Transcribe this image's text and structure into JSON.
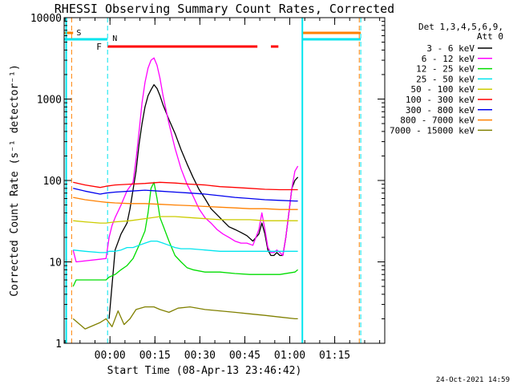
{
  "chart_data": {
    "type": "line",
    "title": "RHESSI Observing Summary Count Rates, Corrected",
    "xlabel": "Start Time (08-Apr-13 23:46:42)",
    "ylabel": "Corrected Count Rate (s⁻¹ detector⁻¹)",
    "yscale": "log",
    "ylim": [
      1,
      10000
    ],
    "xlim_minutes_from_start": [
      -2,
      105
    ],
    "x_ticks": [
      {
        "label": "00:00",
        "t": 13.3
      },
      {
        "label": "00:15",
        "t": 28.3
      },
      {
        "label": "00:30",
        "t": 43.3
      },
      {
        "label": "00:45",
        "t": 58.3
      },
      {
        "label": "01:00",
        "t": 73.3
      },
      {
        "label": "01:15",
        "t": 88.3
      }
    ],
    "y_ticks": [
      "1",
      "10",
      "100",
      "1000",
      "10000"
    ],
    "legend_header": [
      "Det 1,3,4,5,6,9,",
      "Att 0"
    ],
    "footer_date": "24-Oct-2021 14:59",
    "flags": {
      "s_label": "S",
      "n_label": "N",
      "f_label": "F",
      "s_color": "#ff8000",
      "n_color": "#00e5ee",
      "f_color": "#ff0000",
      "saa_intervals": [
        [
          -2,
          1.0
        ],
        [
          77.5,
          97.0
        ]
      ],
      "night_intervals": [
        [
          -2,
          12.5
        ],
        [
          77.5,
          97.0
        ]
      ],
      "flare_intervals": [
        [
          12.5,
          62.5
        ],
        [
          67,
          69.5
        ]
      ],
      "vlines_orange": [
        0.5,
        96.5
      ],
      "vlines_cyan": [
        12.5,
        97.0
      ],
      "vlines_cyan_solid": [
        -1.3,
        77.5
      ]
    },
    "series": [
      {
        "name": "3 - 6 keV",
        "color": "#000000",
        "x": [
          13,
          15,
          17,
          19,
          20,
          22,
          23,
          24,
          25,
          26,
          27,
          28,
          29,
          30,
          31,
          33,
          35,
          37,
          39,
          41,
          43,
          45,
          47,
          49,
          51,
          53,
          55,
          57,
          59,
          61,
          63,
          64,
          65,
          66,
          67,
          68,
          69,
          70,
          71,
          72,
          73,
          74,
          75,
          76
        ],
        "y": [
          2,
          14,
          22,
          30,
          45,
          130,
          280,
          500,
          800,
          1100,
          1300,
          1500,
          1350,
          1100,
          850,
          560,
          380,
          240,
          160,
          110,
          78,
          60,
          45,
          38,
          32,
          27,
          25,
          23,
          21,
          18,
          22,
          30,
          22,
          14,
          12,
          12,
          13,
          12,
          12,
          20,
          40,
          80,
          100,
          110
        ]
      },
      {
        "name": "6 - 12 keV",
        "color": "#ff00ff",
        "x": [
          1,
          2,
          12,
          13,
          14,
          15,
          17,
          19,
          21,
          22,
          23,
          24,
          25,
          26,
          27,
          28,
          29,
          30,
          31,
          33,
          35,
          37,
          39,
          41,
          43,
          45,
          47,
          49,
          51,
          53,
          55,
          57,
          59,
          61,
          63,
          64,
          65,
          66,
          67,
          68,
          69,
          70,
          71,
          72,
          73,
          74,
          75,
          76
        ],
        "y": [
          14,
          10,
          11,
          20,
          28,
          35,
          50,
          75,
          95,
          180,
          400,
          900,
          1600,
          2400,
          3000,
          3200,
          2600,
          1800,
          1100,
          500,
          250,
          140,
          90,
          65,
          45,
          35,
          30,
          25,
          22,
          20,
          18,
          17,
          17,
          16,
          25,
          40,
          25,
          15,
          13,
          13,
          14,
          13,
          12,
          20,
          40,
          80,
          130,
          150
        ]
      },
      {
        "name": "12 - 25 keV",
        "color": "#00dd00",
        "x": [
          1,
          2,
          12,
          13,
          15,
          17,
          19,
          21,
          23,
          25,
          26,
          27,
          28,
          29,
          30,
          31,
          33,
          35,
          37,
          39,
          41,
          45,
          50,
          55,
          60,
          65,
          70,
          75,
          76
        ],
        "y": [
          5,
          6,
          6,
          6.5,
          7,
          8,
          9,
          11,
          16,
          24,
          40,
          80,
          95,
          60,
          35,
          28,
          18,
          12,
          10,
          8.5,
          8,
          7.5,
          7.5,
          7.2,
          7,
          7,
          7,
          7.5,
          8
        ]
      },
      {
        "name": "25 - 50 keV",
        "color": "#00e5ee",
        "x": [
          1,
          5,
          10,
          12,
          13,
          15,
          17,
          19,
          21,
          23,
          25,
          27,
          29,
          31,
          33,
          35,
          37,
          40,
          45,
          50,
          55,
          60,
          65,
          70,
          75,
          76
        ],
        "y": [
          14,
          13.5,
          13,
          13,
          13.5,
          13.5,
          14,
          15,
          15,
          16,
          17,
          18,
          18,
          17,
          16,
          15,
          14.5,
          14.5,
          14,
          13.5,
          13.5,
          13.5,
          13.5,
          13.5,
          13.5,
          13.5
        ]
      },
      {
        "name": "50 - 100 keV",
        "color": "#cccc00",
        "x": [
          1,
          5,
          10,
          12,
          15,
          20,
          25,
          30,
          35,
          40,
          45,
          50,
          55,
          60,
          65,
          70,
          75,
          76
        ],
        "y": [
          32,
          31,
          30,
          30,
          31,
          32,
          34,
          36,
          36,
          35,
          34,
          33,
          33,
          33,
          32,
          32,
          32,
          32
        ]
      },
      {
        "name": "100 - 300 keV",
        "color": "#ff0000",
        "x": [
          1,
          5,
          10,
          12,
          15,
          20,
          25,
          30,
          35,
          40,
          45,
          50,
          55,
          60,
          65,
          70,
          75,
          76
        ],
        "y": [
          95,
          88,
          82,
          85,
          88,
          90,
          92,
          95,
          93,
          90,
          88,
          84,
          82,
          80,
          78,
          77,
          77,
          77
        ]
      },
      {
        "name": "300 - 800 keV",
        "color": "#0000ee",
        "x": [
          1,
          5,
          10,
          12,
          15,
          20,
          25,
          30,
          35,
          40,
          45,
          50,
          55,
          60,
          65,
          70,
          75,
          76
        ],
        "y": [
          80,
          74,
          68,
          70,
          72,
          74,
          76,
          74,
          72,
          70,
          68,
          65,
          62,
          60,
          58,
          57,
          56,
          56
        ]
      },
      {
        "name": "800 - 7000 keV",
        "color": "#ff8000",
        "x": [
          1,
          5,
          10,
          12,
          15,
          20,
          25,
          30,
          35,
          40,
          45,
          50,
          55,
          60,
          65,
          70,
          75,
          76
        ],
        "y": [
          62,
          58,
          55,
          54,
          53,
          52,
          52,
          51,
          50,
          49,
          48,
          47,
          46,
          45,
          45,
          44,
          44,
          44
        ]
      },
      {
        "name": "7000 - 15000 keV",
        "color": "#808000",
        "x": [
          1,
          5,
          10,
          12,
          14,
          16,
          18,
          20,
          22,
          25,
          28,
          30,
          33,
          36,
          40,
          45,
          50,
          55,
          60,
          65,
          70,
          75,
          76
        ],
        "y": [
          2,
          1.5,
          1.8,
          2,
          1.6,
          2.5,
          1.7,
          2,
          2.6,
          2.8,
          2.8,
          2.6,
          2.4,
          2.7,
          2.8,
          2.6,
          2.5,
          2.4,
          2.3,
          2.2,
          2.1,
          2.0,
          2.0
        ]
      }
    ]
  }
}
